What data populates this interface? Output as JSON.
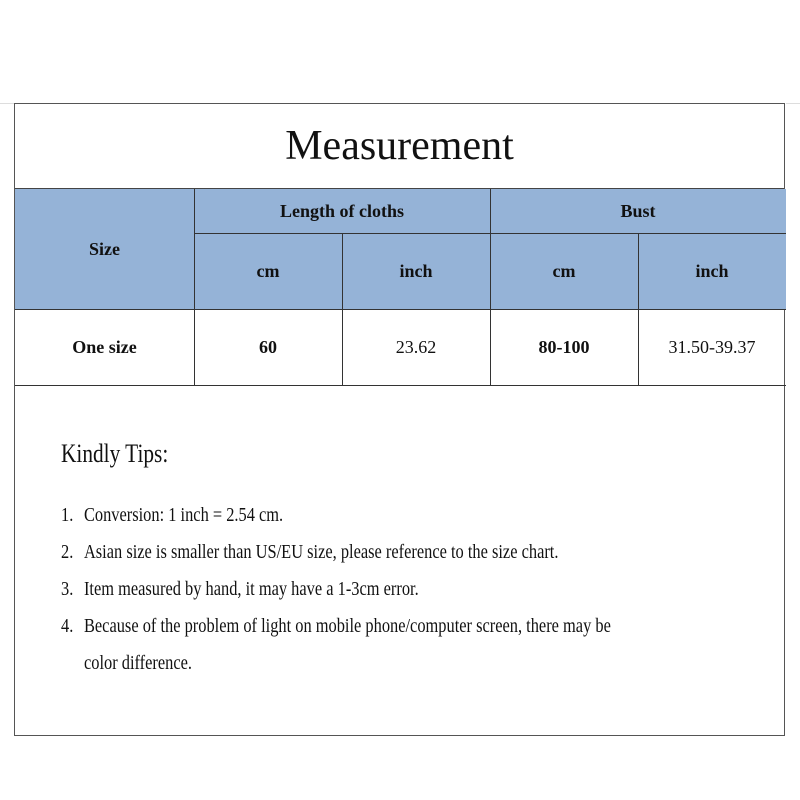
{
  "title": "Measurement",
  "table": {
    "header_color": "#95b3d7",
    "size_label": "Size",
    "groups": [
      "Length of cloths",
      "Bust"
    ],
    "units": [
      "cm",
      "inch",
      "cm",
      "inch"
    ],
    "rows": [
      {
        "size": "One size",
        "values": [
          "60",
          "23.62",
          "80-100",
          "31.50-39.37"
        ]
      }
    ]
  },
  "tips": {
    "heading": "Kindly Tips:",
    "items": [
      {
        "num": "1.",
        "text": "Conversion: 1 inch = 2.54 cm."
      },
      {
        "num": "2.",
        "text": "Asian size is smaller than US/EU size, please reference to the size chart."
      },
      {
        "num": "3.",
        "text": "Item measured by hand, it may have a 1-3cm error."
      },
      {
        "num": "4.",
        "text": "Because of the problem of light on mobile phone/computer screen, there may be",
        "cont": "color difference."
      }
    ]
  }
}
